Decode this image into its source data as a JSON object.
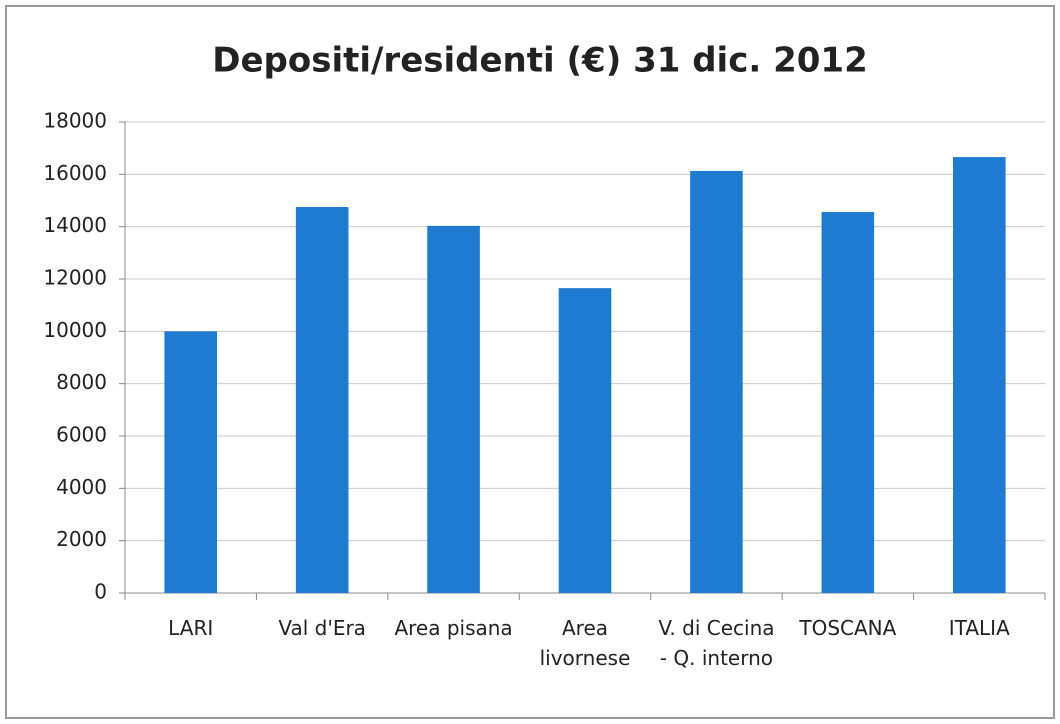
{
  "chart_data": {
    "type": "bar",
    "title": "Depositi/residenti (€) 31 dic. 2012",
    "categories": [
      "LARI",
      "Val d'Era",
      "Area pisana",
      "Area livornese",
      "V. di Cecina - Q. interno",
      "TOSCANA",
      "ITALIA"
    ],
    "values": [
      10000,
      14750,
      14030,
      11650,
      16130,
      14560,
      16660
    ],
    "color": "#1f7bd1",
    "ylim": [
      0,
      18000
    ],
    "yticks": [
      0,
      2000,
      4000,
      6000,
      8000,
      10000,
      12000,
      14000,
      16000,
      18000
    ],
    "grid": true
  }
}
